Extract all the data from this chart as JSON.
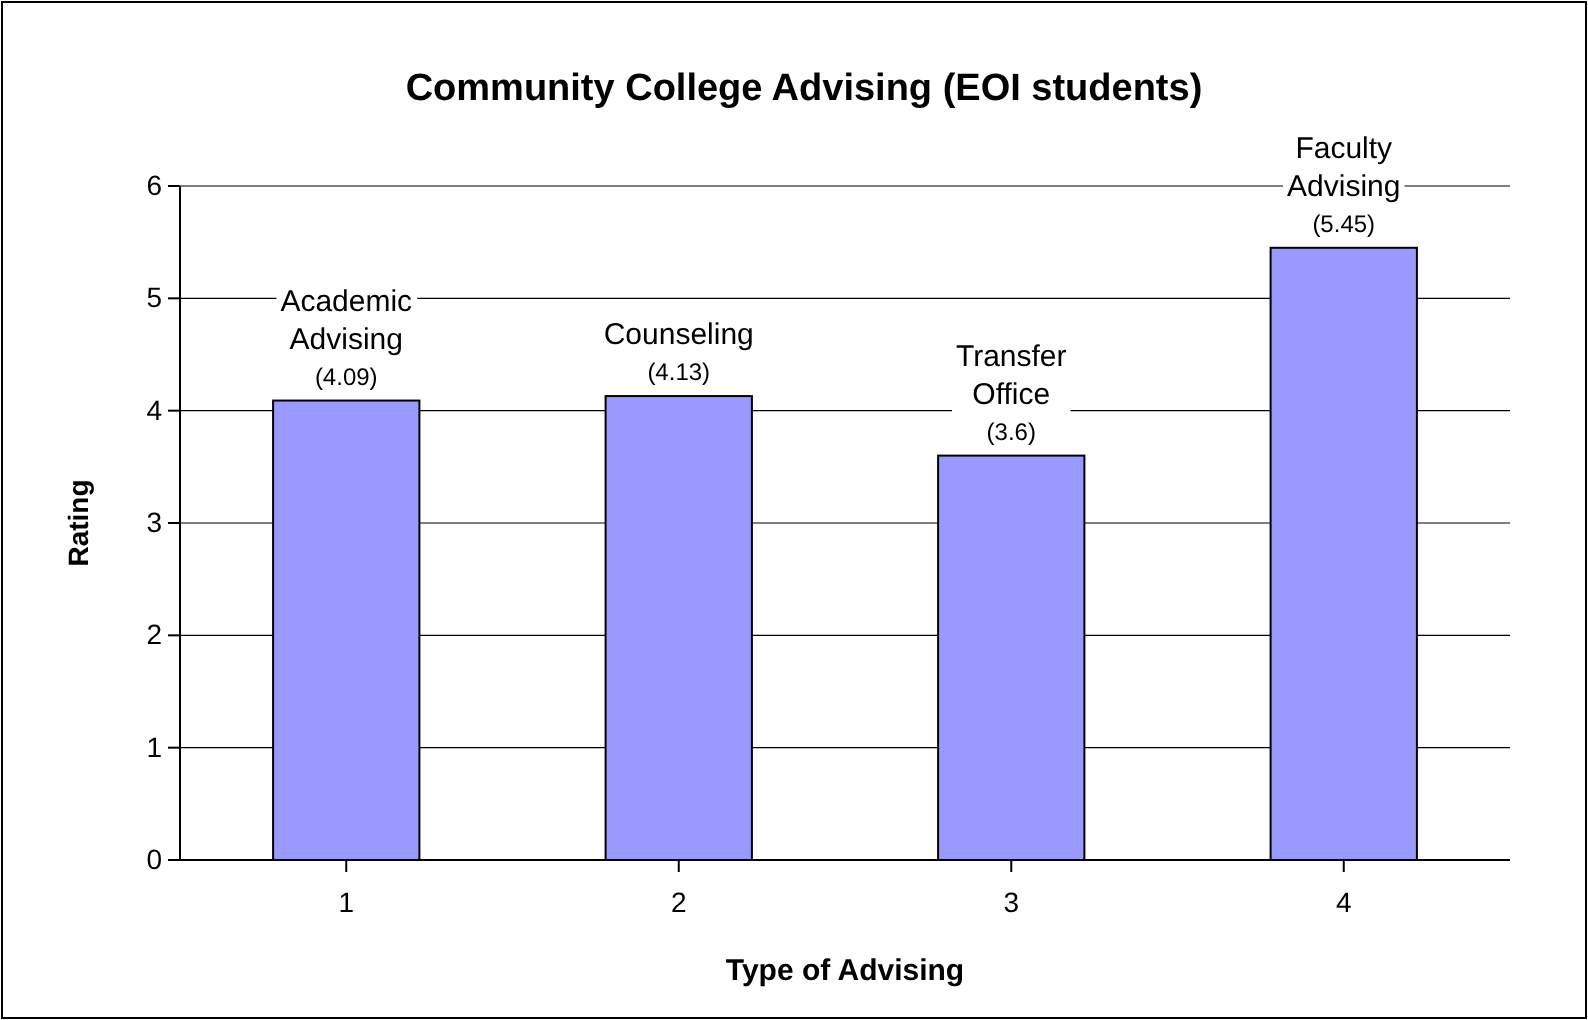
{
  "chart_data": {
    "type": "bar",
    "title": "Community College Advising (EOI students)",
    "xlabel": "Type of Advising",
    "ylabel": "Rating",
    "categories": [
      "1",
      "2",
      "3",
      "4"
    ],
    "values": [
      4.09,
      4.13,
      3.6,
      5.45
    ],
    "value_labels": [
      "(4.09)",
      "(4.13)",
      "(3.6)",
      "(5.45)"
    ],
    "color": "#9999ff",
    "ylim": [
      0,
      6
    ],
    "yticks": [
      0,
      1,
      2,
      3,
      4,
      5,
      6
    ],
    "grid": "y",
    "annotations": [
      {
        "text": "Academic Advising",
        "x": "1",
        "y": 4.09
      },
      {
        "text": "Counseling",
        "x": "2",
        "y": 4.13
      },
      {
        "text": "Transfer Office",
        "x": "3",
        "y": 3.6
      },
      {
        "text": "Faculty Advising",
        "x": "4",
        "y": 5.45
      }
    ]
  }
}
